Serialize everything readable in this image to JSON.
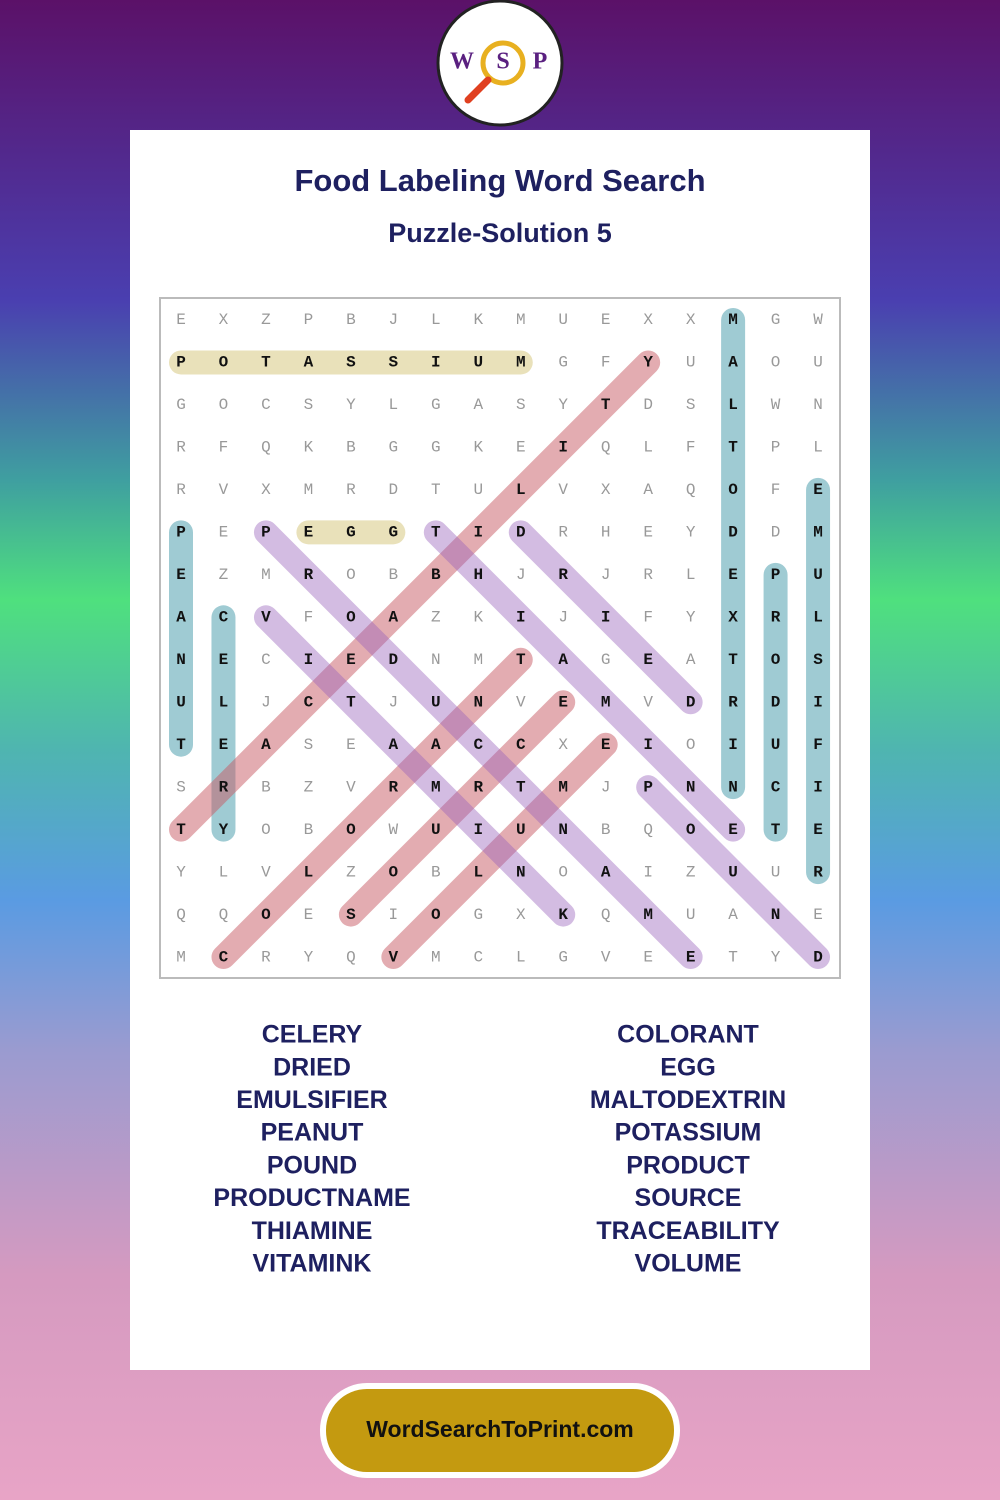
{
  "logo": [
    "W",
    "S",
    "P"
  ],
  "title": "Food Labeling Word Search",
  "subtitle": "Puzzle-Solution 5",
  "grid": [
    [
      "E",
      "X",
      "Z",
      "P",
      "B",
      "J",
      "L",
      "K",
      "M",
      "U",
      "E",
      "X",
      "X",
      "M",
      "G",
      "W"
    ],
    [
      "P",
      "O",
      "T",
      "A",
      "S",
      "S",
      "I",
      "U",
      "M",
      "G",
      "F",
      "Y",
      "U",
      "A",
      "O",
      "U"
    ],
    [
      "G",
      "O",
      "C",
      "S",
      "Y",
      "L",
      "G",
      "A",
      "S",
      "Y",
      "T",
      "D",
      "S",
      "L",
      "W",
      "N"
    ],
    [
      "R",
      "F",
      "Q",
      "K",
      "B",
      "G",
      "G",
      "K",
      "E",
      "I",
      "Q",
      "L",
      "F",
      "T",
      "P",
      "L"
    ],
    [
      "R",
      "V",
      "X",
      "M",
      "R",
      "D",
      "T",
      "U",
      "L",
      "V",
      "X",
      "A",
      "Q",
      "O",
      "F",
      "E"
    ],
    [
      "P",
      "E",
      "P",
      "E",
      "G",
      "G",
      "T",
      "I",
      "D",
      "R",
      "H",
      "E",
      "Y",
      "D",
      "D",
      "M"
    ],
    [
      "E",
      "Z",
      "M",
      "R",
      "O",
      "B",
      "B",
      "H",
      "J",
      "R",
      "J",
      "R",
      "L",
      "E",
      "P",
      "U"
    ],
    [
      "A",
      "C",
      "V",
      "F",
      "O",
      "A",
      "Z",
      "K",
      "I",
      "J",
      "I",
      "F",
      "Y",
      "X",
      "R",
      "L"
    ],
    [
      "N",
      "E",
      "C",
      "I",
      "E",
      "D",
      "N",
      "M",
      "T",
      "A",
      "G",
      "E",
      "A",
      "T",
      "O",
      "S"
    ],
    [
      "U",
      "L",
      "J",
      "C",
      "T",
      "J",
      "U",
      "N",
      "V",
      "E",
      "M",
      "V",
      "D",
      "R",
      "D",
      "I"
    ],
    [
      "T",
      "E",
      "A",
      "S",
      "E",
      "A",
      "A",
      "C",
      "C",
      "X",
      "E",
      "I",
      "O",
      "I",
      "U",
      "F"
    ],
    [
      "S",
      "R",
      "B",
      "Z",
      "V",
      "R",
      "M",
      "R",
      "T",
      "M",
      "J",
      "P",
      "N",
      "N",
      "C",
      "I"
    ],
    [
      "T",
      "Y",
      "O",
      "B",
      "O",
      "W",
      "U",
      "I",
      "U",
      "N",
      "B",
      "Q",
      "O",
      "E",
      "T",
      "E"
    ],
    [
      "Y",
      "L",
      "V",
      "L",
      "Z",
      "O",
      "B",
      "L",
      "N",
      "O",
      "A",
      "I",
      "Z",
      "U",
      "U",
      "R"
    ],
    [
      "Q",
      "Q",
      "O",
      "E",
      "S",
      "I",
      "O",
      "G",
      "X",
      "K",
      "Q",
      "M",
      "U",
      "A",
      "N",
      "E"
    ],
    [
      "M",
      "C",
      "R",
      "Y",
      "Q",
      "V",
      "M",
      "C",
      "L",
      "G",
      "V",
      "E",
      "E",
      "T",
      "Y",
      "D"
    ]
  ],
  "word_columns": [
    [
      "CELERY",
      "DRIED",
      "EMULSIFIER",
      "PEANUT",
      "POUND",
      "PRODUCTNAME",
      "THIAMINE",
      "VITAMINK"
    ],
    [
      "COLORANT",
      "EGG",
      "MALTODEXTRIN",
      "POTASSIUM",
      "PRODUCT",
      "SOURCE",
      "TRACEABILITY",
      "VOLUME"
    ]
  ],
  "footer": "WordSearchToPrint.com"
}
